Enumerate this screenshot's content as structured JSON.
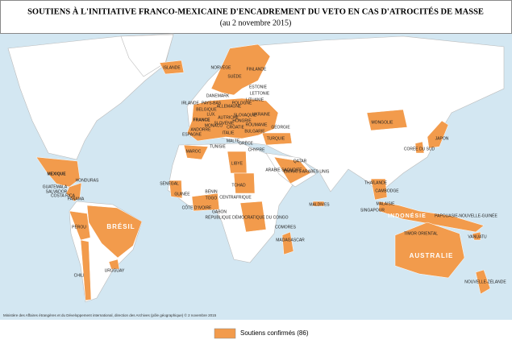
{
  "header": {
    "title": "SOUTIENS À L'INITIATIVE FRANCO-MEXICAINE D'ENCADREMENT DU VETO EN CAS D'ATROCITÉS DE MASSE",
    "subtitle": "(au 2 novembre 2015)"
  },
  "labels": [
    "ISLANDE",
    "NORVÈGE",
    "SUÈDE",
    "FINLANDE",
    "ESTONIE",
    "LETTONIE",
    "LITUANIE",
    "DANEMARK",
    "IRLANDE",
    "PAYS-BAS",
    "BELGIQUE",
    "LUX.",
    "FRANCE",
    "ALLEMAGNE",
    "POLOGNE",
    "SLOVAQUIE",
    "HONGRIE",
    "UKRAINE",
    "ROUMANIE",
    "AUTRICHE",
    "SLOVÉNIE",
    "CROATIE",
    "MONACO",
    "ANDORRE",
    "ESPAGNE",
    "ITALIE",
    "BULGARIE",
    "MALTE",
    "TUNISIE",
    "GRÈCE",
    "CHYPRE",
    "TURQUIE",
    "GÉORGIE",
    "MAROC",
    "LIBYE",
    "QATAR",
    "ARABIE SAOUDITE",
    "ÉMIRATS ARABES UNIS",
    "MONGOLIE",
    "CORÉE DU SUD",
    "JAPON",
    "MEXIQUE",
    "HONDURAS",
    "GUATEMALA",
    "SALVADOR",
    "COSTA RICA",
    "PANAMA",
    "SÉNÉGAL",
    "GUINÉE",
    "BÉNIN",
    "TOGO",
    "CÔTE D'IVOIRE",
    "TCHAD",
    "CENTRAFRIQUE",
    "GABON",
    "RÉPUBLIQUE DÉMOCRATIQUE DU CONGO",
    "COMORES",
    "MADAGASCAR",
    "MALDIVES",
    "THAÏLANDE",
    "CAMBODGE",
    "MALAISIE",
    "SINGAPOUR",
    "INDONÉSIE",
    "PAPOUASIE-NOUVELLE-GUINÉE",
    "TIMOR ORIENTAL",
    "VANUATU",
    "AUSTRALIE",
    "NOUVELLE-ZÉLANDE",
    "BRÉSIL",
    "PÉROU",
    "CHILI",
    "URUGUAY"
  ],
  "credit": "Ministère des Affaires étrangères et du Développement international, direction des Archives (pôle géographique) © 2 novembre 2015",
  "legend": {
    "label": "Soutiens confirmés (86)"
  }
}
